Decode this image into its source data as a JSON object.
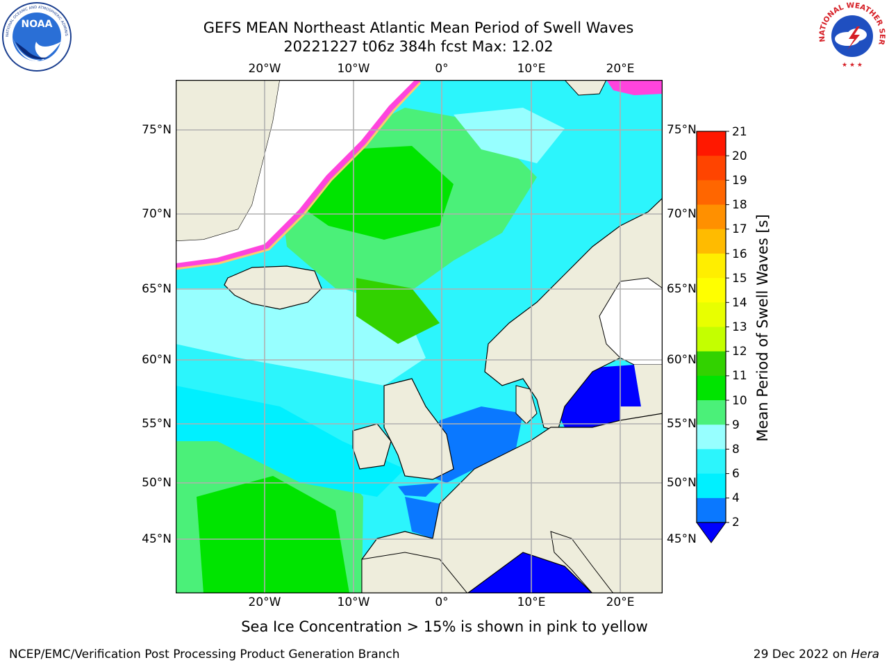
{
  "header": {
    "title_line1": "GEFS MEAN Northeast Atlantic Mean Period of Swell Waves",
    "title_line2": "20221227 t06z 384h fcst   Max: 12.02"
  },
  "logos": {
    "left": {
      "name": "NOAA",
      "ring_text": "NATIONAL OCEANIC AND ATMOSPHERIC ADMINISTRATION · U.S. DEPARTMENT OF COMMERCE"
    },
    "right": {
      "name": "NATIONAL WEATHER SERVICE"
    }
  },
  "map": {
    "lon_labels": [
      "20°W",
      "10°W",
      "0°",
      "10°E",
      "20°E"
    ],
    "lat_labels": [
      "75°N",
      "70°N",
      "65°N",
      "60°N",
      "55°N",
      "50°N",
      "45°N"
    ],
    "colors": {
      "land": "#eeeddc",
      "grid": "#b0b0b0",
      "ice": "#ffffff"
    }
  },
  "colorbar": {
    "title": "Mean Period of Swell Waves [s]",
    "ticks": [
      "21",
      "20",
      "19",
      "18",
      "17",
      "16",
      "15",
      "14",
      "13",
      "12",
      "11",
      "10",
      "9",
      "8",
      "6",
      "4",
      "2"
    ],
    "levels": [
      {
        "from": 2,
        "to": 4,
        "color": "#0a78ff"
      },
      {
        "from": 4,
        "to": 6,
        "color": "#00f0ff"
      },
      {
        "from": 6,
        "to": 8,
        "color": "#2cf5fc"
      },
      {
        "from": 8,
        "to": 9,
        "color": "#97ffff"
      },
      {
        "from": 9,
        "to": 10,
        "color": "#4bf079"
      },
      {
        "from": 10,
        "to": 11,
        "color": "#00e400"
      },
      {
        "from": 11,
        "to": 12,
        "color": "#32d200"
      },
      {
        "from": 12,
        "to": 13,
        "color": "#c4ff00"
      },
      {
        "from": 13,
        "to": 14,
        "color": "#e8ff00"
      },
      {
        "from": 14,
        "to": 15,
        "color": "#ffff00"
      },
      {
        "from": 15,
        "to": 16,
        "color": "#ffee00"
      },
      {
        "from": 16,
        "to": 17,
        "color": "#ffbb00"
      },
      {
        "from": 17,
        "to": 18,
        "color": "#ff9000"
      },
      {
        "from": 18,
        "to": 19,
        "color": "#ff6600"
      },
      {
        "from": 19,
        "to": 20,
        "color": "#ff4400"
      },
      {
        "from": 20,
        "to": 21,
        "color": "#ff1800"
      }
    ],
    "under_color": "#0000ff"
  },
  "subtitle": "Sea Ice Concentration > 15% is shown in pink to yellow",
  "footer": {
    "left": "NCEP/EMC/Verification Post Processing Product Generation Branch",
    "right_date": "29 Dec 2022 on",
    "right_host": "Hera"
  }
}
